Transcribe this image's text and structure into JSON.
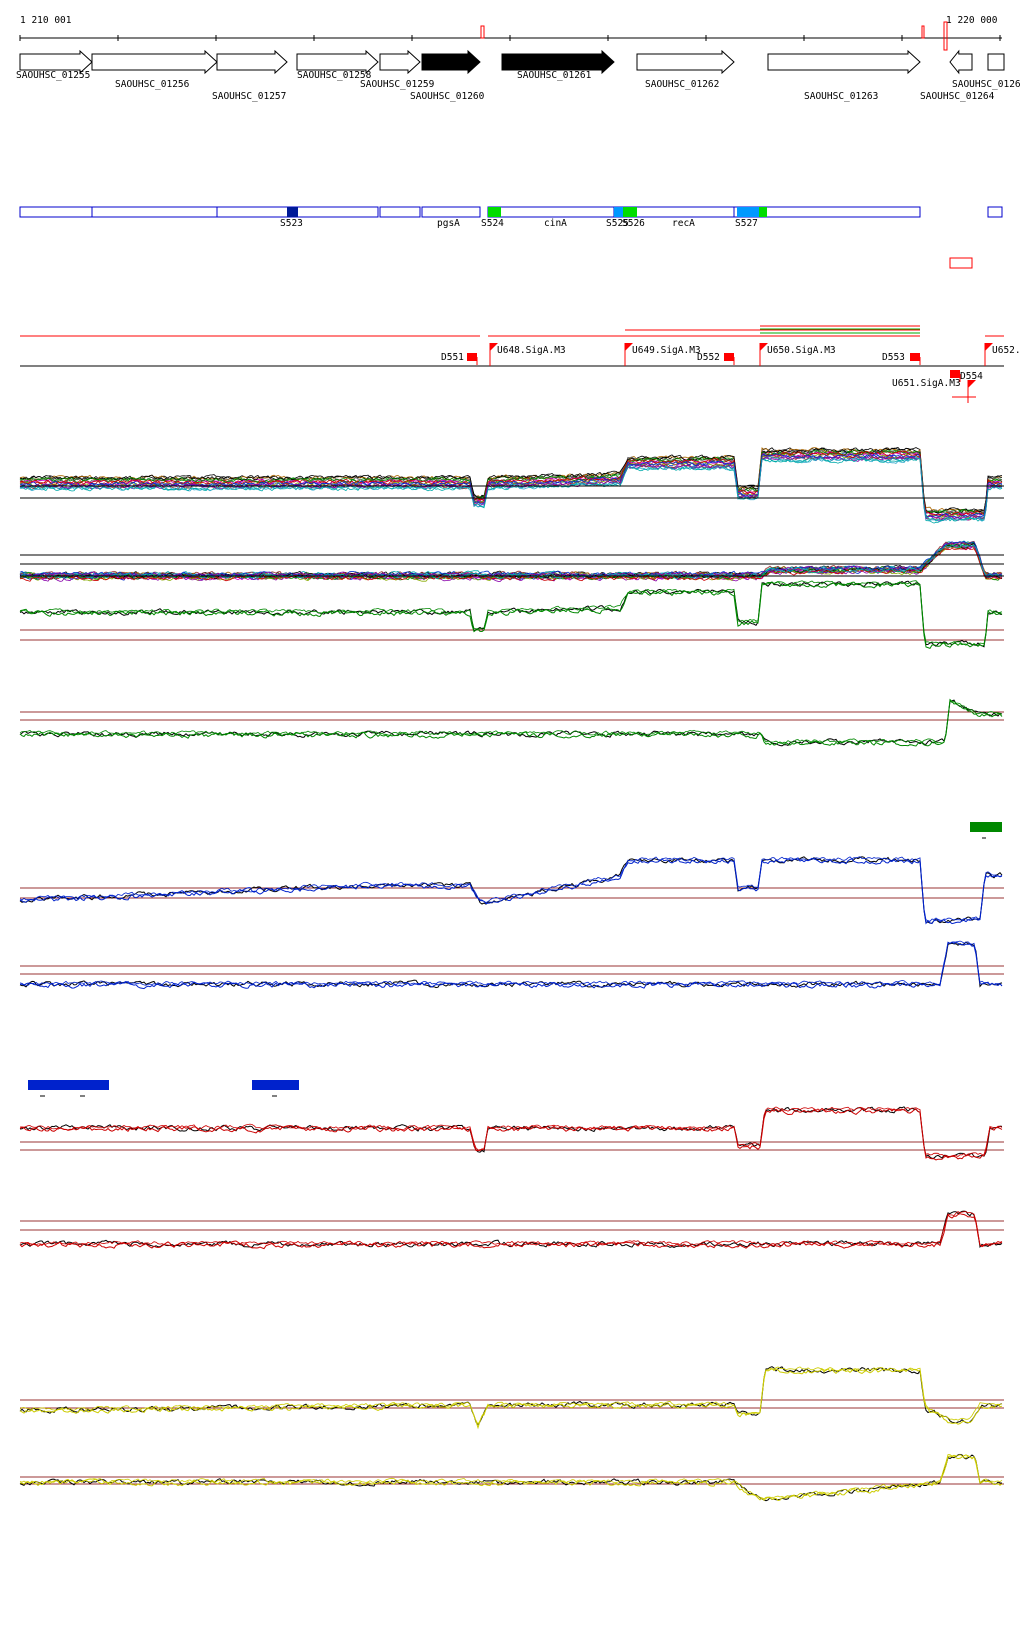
{
  "coords": {
    "start": "1 210 001",
    "end": "1 220 000"
  },
  "genes": [
    {
      "label": "SAOUHSC_01255",
      "filled": false
    },
    {
      "label": "SAOUHSC_01256",
      "filled": false
    },
    {
      "label": "SAOUHSC_01257",
      "filled": false
    },
    {
      "label": "SAOUHSC_01258",
      "filled": false
    },
    {
      "label": "SAOUHSC_01259",
      "filled": false
    },
    {
      "label": "SAOUHSC_01260",
      "filled": true
    },
    {
      "label": "SAOUHSC_01261",
      "filled": true
    },
    {
      "label": "SAOUHSC_01262",
      "filled": false
    },
    {
      "label": "SAOUHSC_01263",
      "filled": false
    },
    {
      "label": "SAOUHSC_01264",
      "filled": false
    },
    {
      "label": "SAOUHSC_0126",
      "filled": false
    }
  ],
  "segments": [
    {
      "label": "S523",
      "color": "#001a99"
    },
    {
      "label": "pgsA",
      "color": null
    },
    {
      "label": "S524",
      "color": "#00dd00"
    },
    {
      "label": "cinA",
      "color": null
    },
    {
      "label": "S525",
      "color": "#0099ff"
    },
    {
      "label": "S526",
      "color": "#00dd00"
    },
    {
      "label": "recA",
      "color": null
    },
    {
      "label": "S527",
      "color": "#0099ff"
    }
  ],
  "features": [
    {
      "label": "D551",
      "kind": "down"
    },
    {
      "label": "U648.SigA.M3",
      "kind": "up"
    },
    {
      "label": "U649.SigA.M3",
      "kind": "up"
    },
    {
      "label": "D552",
      "kind": "down"
    },
    {
      "label": "U650.SigA.M3",
      "kind": "up"
    },
    {
      "label": "D553",
      "kind": "down"
    },
    {
      "label": "D554",
      "kind": "down"
    },
    {
      "label": "U651.SigA.M3",
      "kind": "up"
    },
    {
      "label": "U652.",
      "kind": "up"
    }
  ],
  "colors": {
    "gene_outline": "#000000",
    "segment_box": "#0000cc",
    "feature_red": "#ff0000",
    "threshold_line": "#993333",
    "track_green": "#008800",
    "track_blue": "#0022cc",
    "track_red": "#cc0000",
    "track_yellow": "#cccc00",
    "bar_green": "#008800",
    "bar_blue": "#0022cc"
  },
  "track_colors": [
    "green",
    "green",
    "blue",
    "blue",
    "red",
    "red",
    "yellow",
    "yellow"
  ]
}
